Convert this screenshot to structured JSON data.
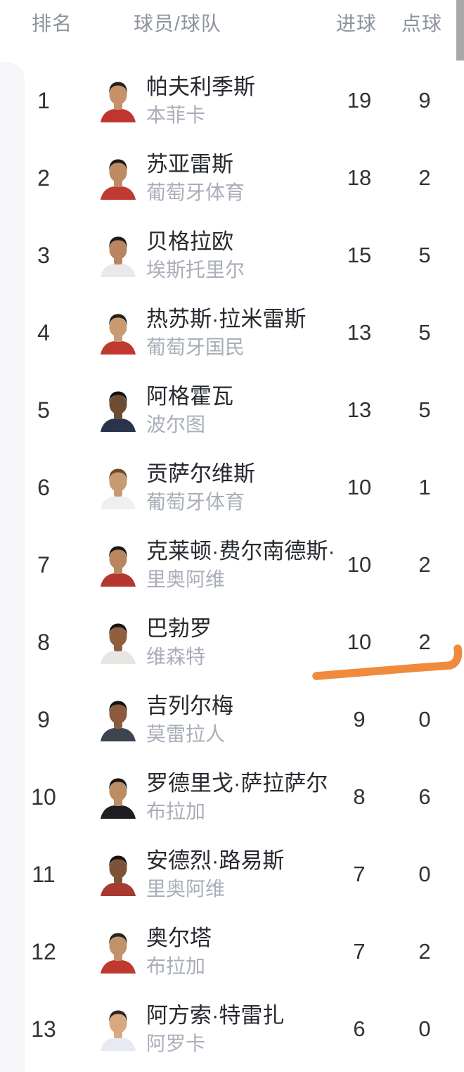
{
  "table": {
    "headers": {
      "rank": "排名",
      "player_team": "球员/球队",
      "goals": "进球",
      "penalties": "点球"
    }
  },
  "rows": [
    {
      "rank": "1",
      "player": "帕夫利季斯",
      "team": "本菲卡",
      "goals": "19",
      "penalties": "9",
      "avatar": {
        "skin": "#c79167",
        "hair": "#27211d",
        "shirt": "#c2352f"
      }
    },
    {
      "rank": "2",
      "player": "苏亚雷斯",
      "team": "葡萄牙体育",
      "goals": "18",
      "penalties": "2",
      "avatar": {
        "skin": "#bd8a62",
        "hair": "#221c18",
        "shirt": "#bf3a33"
      }
    },
    {
      "rank": "3",
      "player": "贝格拉欧",
      "team": "埃斯托里尔",
      "goals": "15",
      "penalties": "5",
      "avatar": {
        "skin": "#b9855e",
        "hair": "#1f1a16",
        "shirt": "#e9e9e9"
      }
    },
    {
      "rank": "4",
      "player": "热苏斯·拉米雷斯",
      "team": "葡萄牙国民",
      "goals": "13",
      "penalties": "5",
      "avatar": {
        "skin": "#c99a70",
        "hair": "#26201b",
        "shirt": "#c0392e"
      }
    },
    {
      "rank": "5",
      "player": "阿格霍瓦",
      "team": "波尔图",
      "goals": "13",
      "penalties": "5",
      "avatar": {
        "skin": "#6e4c34",
        "hair": "#151210",
        "shirt": "#27344a"
      }
    },
    {
      "rank": "6",
      "player": "贡萨尔维斯",
      "team": "葡萄牙体育",
      "goals": "10",
      "penalties": "1",
      "avatar": {
        "skin": "#c79b72",
        "hair": "#6b4a2e",
        "shirt": "#efefef"
      }
    },
    {
      "rank": "7",
      "player": "克莱顿·费尔南德斯·…",
      "team": "里奥阿维",
      "goals": "10",
      "penalties": "2",
      "avatar": {
        "skin": "#b8875f",
        "hair": "#1d1814",
        "shirt": "#b5372f"
      }
    },
    {
      "rank": "8",
      "player": "巴勃罗",
      "team": "维森特",
      "goals": "10",
      "penalties": "2",
      "avatar": {
        "skin": "#8f5f3e",
        "hair": "#17130f",
        "shirt": "#e8e6e2"
      }
    },
    {
      "rank": "9",
      "player": "吉列尔梅",
      "team": "莫雷拉人",
      "goals": "9",
      "penalties": "0",
      "avatar": {
        "skin": "#8a5a3a",
        "hair": "#17130f",
        "shirt": "#3c4450"
      }
    },
    {
      "rank": "10",
      "player": "罗德里戈·萨拉萨尔",
      "team": "布拉加",
      "goals": "8",
      "penalties": "6",
      "avatar": {
        "skin": "#bc8c64",
        "hair": "#191512",
        "shirt": "#1d1d22"
      }
    },
    {
      "rank": "11",
      "player": "安德烈·路易斯",
      "team": "里奥阿维",
      "goals": "7",
      "penalties": "0",
      "avatar": {
        "skin": "#7c5336",
        "hair": "#161210",
        "shirt": "#a83b30"
      }
    },
    {
      "rank": "12",
      "player": "奥尔塔",
      "team": "布拉加",
      "goals": "7",
      "penalties": "2",
      "avatar": {
        "skin": "#c2926a",
        "hair": "#2a231d",
        "shirt": "#c0392e"
      }
    },
    {
      "rank": "13",
      "player": "阿方索·特雷扎",
      "team": "阿罗卡",
      "goals": "6",
      "penalties": "0",
      "avatar": {
        "skin": "#d8a97f",
        "hair": "#2e2620",
        "shirt": "#e8eaf2"
      }
    }
  ],
  "annotation": {
    "marker_color": "#f08a3c"
  },
  "scrollbar_color": "#a8a8a8"
}
